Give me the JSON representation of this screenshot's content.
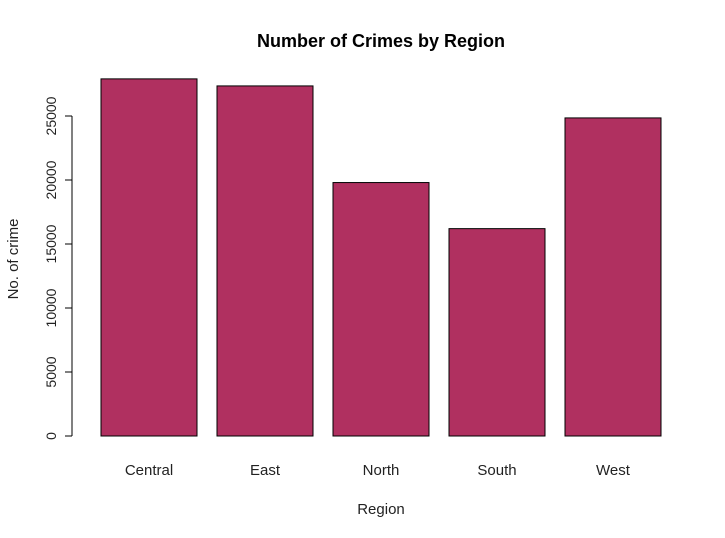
{
  "chart_data": {
    "type": "bar",
    "title": "Number of Crimes by Region",
    "xlabel": "Region",
    "ylabel": "No. of crime",
    "categories": [
      "Central",
      "East",
      "North",
      "South",
      "West"
    ],
    "values": [
      27900,
      27350,
      19800,
      16200,
      24850
    ],
    "yticks": [
      0,
      5000,
      10000,
      15000,
      20000,
      25000
    ],
    "ylim": [
      0,
      29000
    ],
    "bar_color": "#B03060",
    "grid": false,
    "legend": "none"
  }
}
